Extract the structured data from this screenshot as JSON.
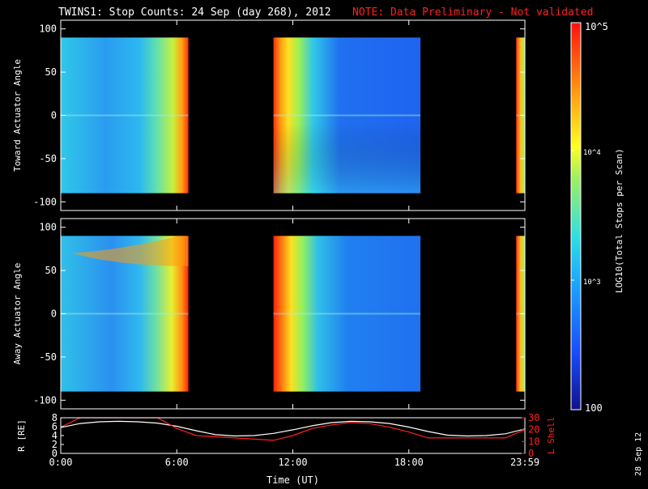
{
  "header": {
    "title": "TWINS1: Stop Counts: 24 Sep (day 268), 2012",
    "note": "NOTE: Data Preliminary - Not validated"
  },
  "side_stamp": "28 Sep 12",
  "colorbar": {
    "label": "LOG10(Total Stops per Scan)",
    "ticks": [
      "10^5",
      "10^4",
      "10^3",
      "100"
    ],
    "range": [
      100,
      100000
    ]
  },
  "chart_data": [
    {
      "type": "heatmap",
      "ylabel": "Toward Actuator Angle",
      "ylim": [
        -110,
        110
      ],
      "yticks": [
        100,
        50,
        0,
        -50,
        -100
      ],
      "xlim": [
        0,
        24
      ],
      "data_angle_range": [
        -90,
        90
      ],
      "segments": [
        {
          "start_h": 0.0,
          "end_h": 6.6
        },
        {
          "start_h": 11.0,
          "end_h": 18.6
        },
        {
          "start_h": 23.55,
          "end_h": 24.0
        }
      ]
    },
    {
      "type": "heatmap",
      "ylabel": "Away Actuator Angle",
      "ylim": [
        -110,
        110
      ],
      "yticks": [
        100,
        50,
        0,
        -50,
        -100
      ],
      "xlim": [
        0,
        24
      ],
      "data_angle_range": [
        -90,
        90
      ],
      "segments": [
        {
          "start_h": 0.0,
          "end_h": 6.6
        },
        {
          "start_h": 11.0,
          "end_h": 18.6
        },
        {
          "start_h": 23.55,
          "end_h": 24.0
        }
      ]
    },
    {
      "type": "line",
      "xlabel": "Time (UT)",
      "xticks": [
        "0:00",
        "6:00",
        "12:00",
        "18:00",
        "23:59"
      ],
      "xtick_hours": [
        0,
        6,
        12,
        18,
        24
      ],
      "ylabel_left": "R [RE]",
      "ylim_left": [
        0,
        8
      ],
      "yticks_left": [
        8,
        6,
        4,
        2,
        0
      ],
      "ylabel_right": "L Shell",
      "ylim_right": [
        0,
        30
      ],
      "yticks_right": [
        30,
        20,
        10,
        0
      ],
      "series": [
        {
          "axis": "left",
          "color": "#ffffff",
          "x": [
            0,
            1,
            2,
            3,
            4,
            5,
            6,
            7,
            8,
            9,
            10,
            11,
            12,
            13,
            14,
            15,
            16,
            17,
            18,
            19,
            20,
            21,
            22,
            23,
            24
          ],
          "y": [
            5.8,
            6.7,
            7.1,
            7.2,
            7.1,
            6.8,
            6.1,
            5.1,
            4.2,
            3.9,
            4.0,
            4.5,
            5.3,
            6.2,
            6.9,
            7.2,
            7.1,
            6.7,
            5.9,
            4.9,
            4.1,
            3.9,
            4.0,
            4.4,
            5.5
          ]
        },
        {
          "axis": "right",
          "color": "#ff2020",
          "x": [
            0,
            1,
            1.2,
            4.8,
            5,
            6,
            7,
            8,
            9,
            10,
            11,
            12,
            13,
            14,
            15,
            16,
            17,
            18,
            19,
            20,
            21,
            22,
            23,
            24
          ],
          "y": [
            22,
            30,
            30,
            30,
            30,
            21,
            15,
            14,
            13,
            12,
            11,
            15,
            21,
            24,
            26,
            25,
            22,
            18,
            13,
            13,
            13,
            13,
            13,
            20
          ]
        }
      ]
    }
  ],
  "colors": {
    "axis": "#ffffff",
    "note": "#ff2020",
    "lshell": "#ff2020",
    "radius": "#ffffff"
  }
}
